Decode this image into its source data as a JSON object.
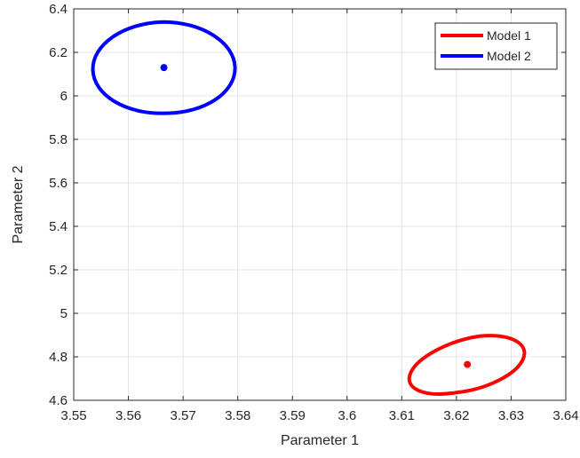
{
  "chart_data": {
    "type": "scatter",
    "xlabel": "Parameter 1",
    "ylabel": "Parameter 2",
    "xlim": [
      3.55,
      3.64
    ],
    "ylim": [
      4.6,
      6.4
    ],
    "xticks": [
      3.55,
      3.56,
      3.57,
      3.58,
      3.59,
      3.6,
      3.61,
      3.62,
      3.63,
      3.64
    ],
    "xtick_labels": [
      "3.55",
      "3.56",
      "3.57",
      "3.58",
      "3.59",
      "3.6",
      "3.61",
      "3.62",
      "3.63",
      "3.64"
    ],
    "yticks": [
      4.6,
      4.8,
      5,
      5.2,
      5.4,
      5.6,
      5.8,
      6,
      6.2,
      6.4
    ],
    "ytick_labels": [
      "4.6",
      "4.8",
      "5",
      "5.2",
      "5.4",
      "5.6",
      "5.8",
      "6",
      "6.2",
      "6.4"
    ],
    "grid": true,
    "legend_position": "top-right",
    "series": [
      {
        "name": "Model 1",
        "color": "#ff0000",
        "center": {
          "x": 3.622,
          "y": 4.765
        },
        "ellipse": {
          "leftmost": {
            "x": 3.6116,
            "y": 4.725
          },
          "rightmost": {
            "x": 3.6322,
            "y": 4.79
          },
          "topmost": {
            "x": 3.6242,
            "y": 4.895
          },
          "bottommost": {
            "x": 3.6198,
            "y": 4.635
          }
        }
      },
      {
        "name": "Model 2",
        "color": "#0000ff",
        "center": {
          "x": 3.5665,
          "y": 6.13
        },
        "ellipse": {
          "leftmost": {
            "x": 3.5535,
            "y": 6.12
          },
          "rightmost": {
            "x": 3.5795,
            "y": 6.13
          },
          "topmost": {
            "x": 3.5663,
            "y": 6.34
          },
          "bottommost": {
            "x": 3.5667,
            "y": 5.92
          }
        }
      }
    ]
  }
}
